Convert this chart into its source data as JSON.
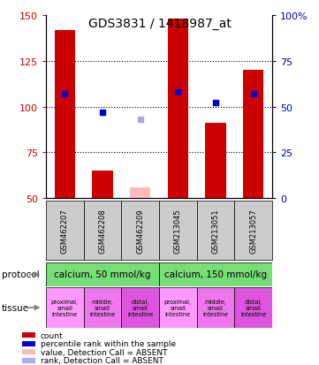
{
  "title": "GDS3831 / 1418987_at",
  "samples": [
    "GSM462207",
    "GSM462208",
    "GSM462209",
    "GSM213045",
    "GSM213051",
    "GSM213057"
  ],
  "bar_values": [
    142,
    65,
    null,
    148,
    91,
    120
  ],
  "absent_bar_values": [
    null,
    null,
    56,
    null,
    null,
    null
  ],
  "rank_values_pct": [
    57,
    47,
    null,
    58,
    52,
    57
  ],
  "absent_rank_values_pct": [
    null,
    null,
    43,
    null,
    null,
    null
  ],
  "ylim_left": [
    50,
    150
  ],
  "ylim_right": [
    0,
    100
  ],
  "yticks_left": [
    50,
    75,
    100,
    125,
    150
  ],
  "yticks_right": [
    0,
    25,
    50,
    75,
    100
  ],
  "ytick_right_labels": [
    "0",
    "25",
    "50",
    "75",
    "100%"
  ],
  "protocol_labels": [
    "calcium, 50 mmol/kg",
    "calcium, 150 mmol/kg"
  ],
  "protocol_color": "#77dd77",
  "tissue_labels": [
    "proximal,\nsmall\nintestine",
    "middle,\nsmall\nintestine",
    "distal,\nsmall\nintestine",
    "proximal,\nsmall\nintestine",
    "middle,\nsmall\nintestine",
    "distal,\nsmall\nintestine"
  ],
  "tissue_colors": [
    "#ff99ff",
    "#ee77ee",
    "#dd55dd",
    "#ff99ff",
    "#ee77ee",
    "#dd55dd"
  ],
  "legend_items": [
    {
      "color": "#cc0000",
      "label": "count"
    },
    {
      "color": "#0000cc",
      "label": "percentile rank within the sample"
    },
    {
      "color": "#ffbbbb",
      "label": "value, Detection Call = ABSENT"
    },
    {
      "color": "#aaaaee",
      "label": "rank, Detection Call = ABSENT"
    }
  ],
  "sample_bg_color": "#cccccc",
  "bar_width": 0.55,
  "rank_square_size": 5,
  "left_tick_color": "#cc0000",
  "right_tick_color": "#0000bb",
  "fig_width": 3.61,
  "fig_height": 4.14,
  "dpi": 100
}
